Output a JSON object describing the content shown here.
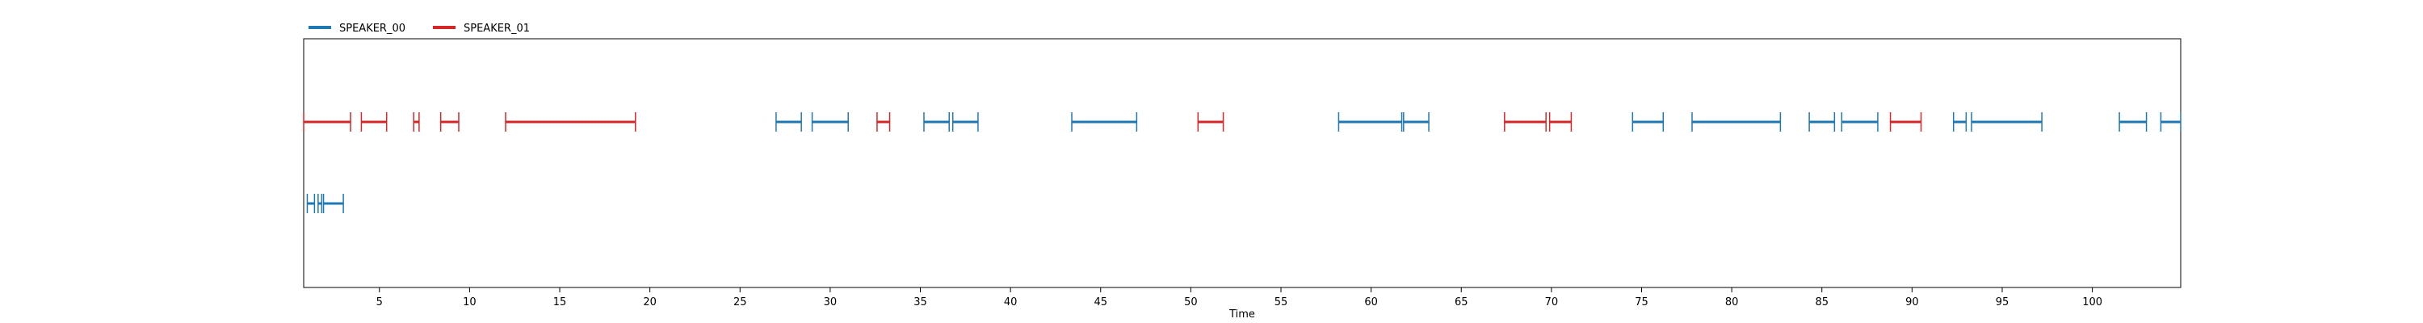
{
  "chart_data": {
    "type": "timeline",
    "title": "",
    "xlabel": "Time",
    "ylabel": "",
    "xlim": [
      0.8,
      104.9
    ],
    "xticks": [
      5,
      10,
      15,
      20,
      25,
      30,
      35,
      40,
      45,
      50,
      55,
      60,
      65,
      70,
      75,
      80,
      85,
      90,
      95,
      100
    ],
    "legend_position": "top-left, outside above plot",
    "grid": false,
    "series": [
      {
        "name": "SPEAKER_00",
        "color": "#1f77b4",
        "segments": [
          [
            27.0,
            28.4
          ],
          [
            29.0,
            31.0
          ],
          [
            35.2,
            36.6
          ],
          [
            36.8,
            38.2
          ],
          [
            43.4,
            47.0
          ],
          [
            58.2,
            61.7
          ],
          [
            61.8,
            63.2
          ],
          [
            74.5,
            76.2
          ],
          [
            77.8,
            82.7
          ],
          [
            84.3,
            85.7
          ],
          [
            86.1,
            88.1
          ],
          [
            92.3,
            93.0
          ],
          [
            93.3,
            97.2
          ],
          [
            101.5,
            103.0
          ],
          [
            103.8,
            104.9
          ]
        ]
      },
      {
        "name": "SPEAKER_01",
        "color": "#d62728",
        "segments": [
          [
            0.8,
            3.4
          ],
          [
            4.0,
            5.4
          ],
          [
            6.9,
            7.2
          ],
          [
            8.4,
            9.4
          ],
          [
            12.0,
            19.2
          ],
          [
            32.6,
            33.3
          ],
          [
            50.4,
            51.8
          ],
          [
            67.4,
            69.7
          ],
          [
            69.9,
            71.1
          ],
          [
            88.8,
            90.5
          ]
        ]
      },
      {
        "name": "",
        "color": "#1f77b4",
        "segments": [
          [
            1.0,
            1.4
          ],
          [
            1.6,
            1.8
          ],
          [
            1.9,
            3.0
          ]
        ]
      }
    ]
  }
}
